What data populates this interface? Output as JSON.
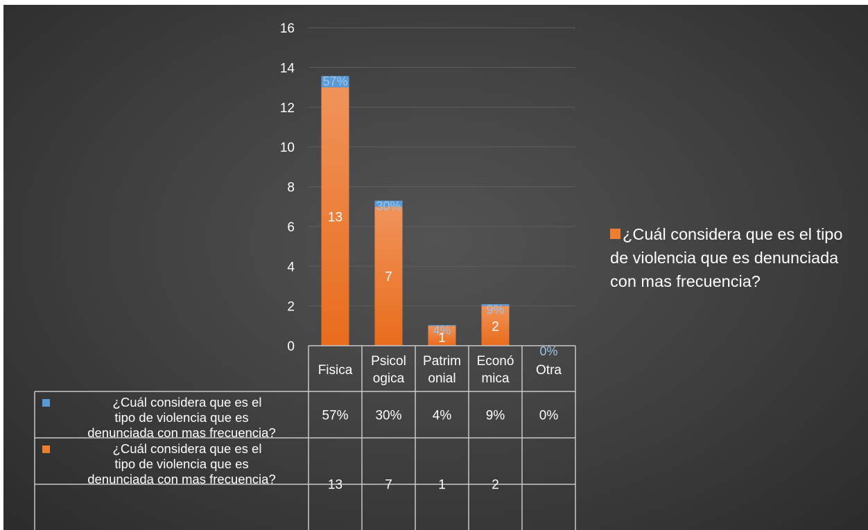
{
  "chart_data": {
    "type": "bar",
    "stacked": true,
    "categories": [
      "Fisica",
      "Psicol\nogica",
      "Patrim\nonial",
      "Econó\nmica",
      "Otra"
    ],
    "series": [
      {
        "name": "¿Cuál considera que es el tipo de violencia que es denunciada con mas frecuencia?",
        "color": "#ed7d31",
        "values": [
          13,
          7,
          1,
          2,
          null
        ],
        "labels": [
          "13",
          "7",
          "1",
          "2",
          ""
        ],
        "table_labels": [
          "13",
          "7",
          "1",
          "2",
          ""
        ]
      },
      {
        "name": "¿Cuál considera que es el tipo de violencia que es denunciada con mas frecuencia?",
        "color": "#5b9bd5",
        "values": [
          0.57,
          0.3,
          0.04,
          0.09,
          0
        ],
        "labels": [
          "57%",
          "30%",
          "4%",
          "9%",
          "0%"
        ],
        "table_labels": [
          "57%",
          "30%",
          "4%",
          "9%",
          "0%"
        ]
      }
    ],
    "y_ticks": [
      "0",
      "2",
      "4",
      "6",
      "8",
      "10",
      "12",
      "14",
      "16"
    ],
    "ylim": [
      0,
      16
    ],
    "grid": true,
    "legend_position": "right",
    "legend_label": "¿Cuál considera que es el tipo de violencia que es denunciada con mas frecuencia?",
    "data_table": true,
    "background": "#404040",
    "text_color": "#ffffff"
  }
}
